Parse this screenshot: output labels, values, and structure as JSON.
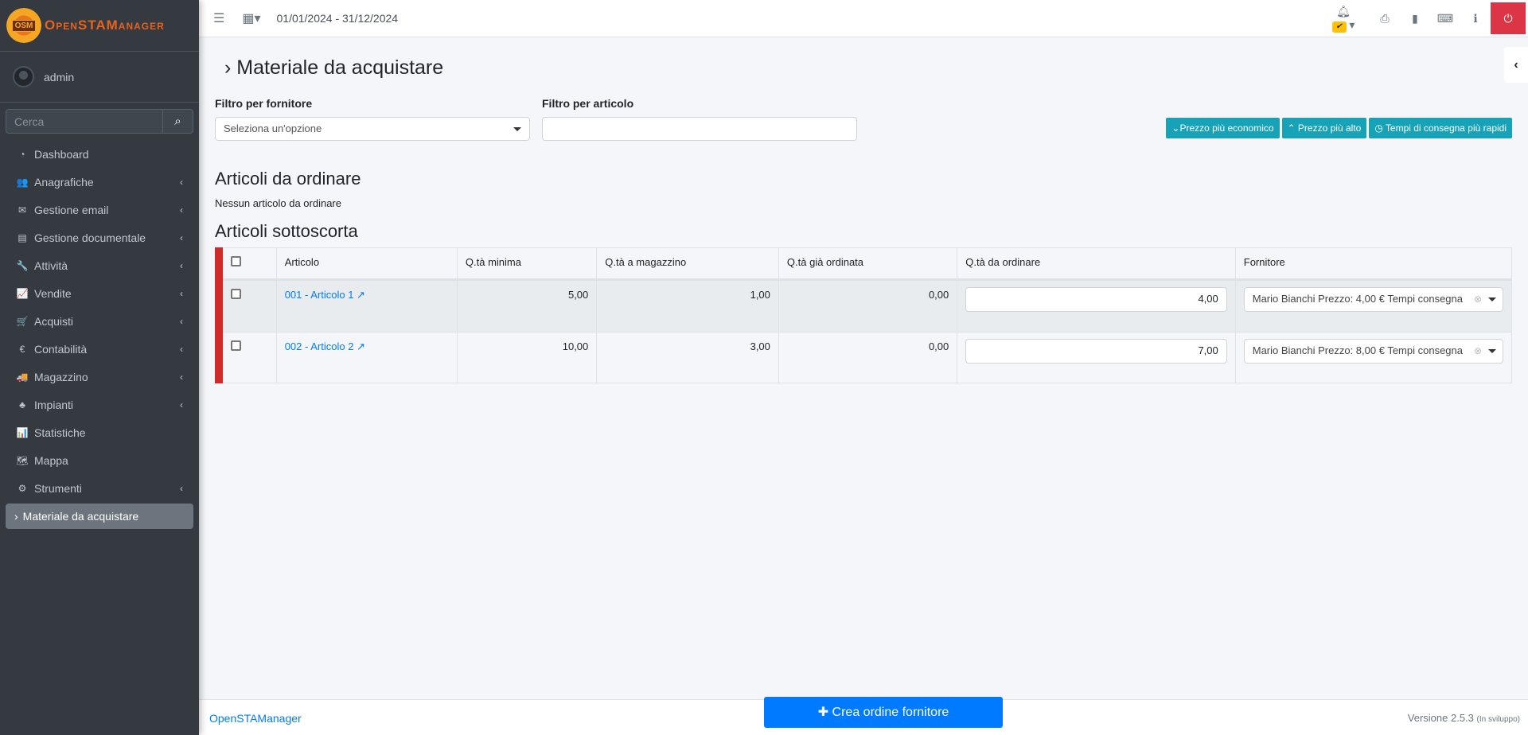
{
  "brand": {
    "name": "OpenSTAManager",
    "logo_text": "OSM"
  },
  "user": {
    "name": "admin"
  },
  "search": {
    "placeholder": "Cerca"
  },
  "sidebar": {
    "items": [
      {
        "label": "Dashboard",
        "icon": "dashboard-icon",
        "glyph": "◔",
        "sub": false
      },
      {
        "label": "Anagrafiche",
        "icon": "users-icon",
        "glyph": "👥",
        "sub": true
      },
      {
        "label": "Gestione email",
        "icon": "envelope-icon",
        "glyph": "✉",
        "sub": true
      },
      {
        "label": "Gestione documentale",
        "icon": "file-icon",
        "glyph": "▤",
        "sub": true
      },
      {
        "label": "Attività",
        "icon": "wrench-icon",
        "glyph": "🔧",
        "sub": true
      },
      {
        "label": "Vendite",
        "icon": "line-chart-icon",
        "glyph": "📈",
        "sub": true
      },
      {
        "label": "Acquisti",
        "icon": "cart-icon",
        "glyph": "🛒",
        "sub": true
      },
      {
        "label": "Contabilità",
        "icon": "euro-icon",
        "glyph": "€",
        "sub": true
      },
      {
        "label": "Magazzino",
        "icon": "truck-icon",
        "glyph": "🚚",
        "sub": true
      },
      {
        "label": "Impianti",
        "icon": "puzzle-icon",
        "glyph": "♣",
        "sub": true
      },
      {
        "label": "Statistiche",
        "icon": "bar-chart-icon",
        "glyph": "📊",
        "sub": false
      },
      {
        "label": "Mappa",
        "icon": "map-icon",
        "glyph": "🗺",
        "sub": false
      },
      {
        "label": "Strumenti",
        "icon": "cog-icon",
        "glyph": "⚙",
        "sub": true
      }
    ],
    "active": "Materiale da acquistare"
  },
  "topbar": {
    "daterange": "01/01/2024 - 31/12/2024"
  },
  "page": {
    "title": "Materiale da acquistare",
    "filter_supplier_label": "Filtro per fornitore",
    "filter_supplier_placeholder": "Seleziona un'opzione",
    "filter_article_label": "Filtro per articolo",
    "buttons": [
      "Prezzo più economico",
      "Prezzo più alto",
      "Tempi di consegna più rapidi"
    ],
    "section_order": "Articoli da ordinare",
    "no_items": "Nessun articolo da ordinare",
    "section_under": "Articoli sottoscorta"
  },
  "table": {
    "headers": [
      "Articolo",
      "Q.tà minima",
      "Q.tà a magazzino",
      "Q.tà già ordinata",
      "Q.tà da ordinare",
      "Fornitore"
    ],
    "rows": [
      {
        "articolo": "001 - Articolo 1",
        "min": "5,00",
        "mag": "1,00",
        "ord": "0,00",
        "da_ordinare": "4,00",
        "fornitore": "Mario Bianchi Prezzo: 4,00 €  Tempi consegna"
      },
      {
        "articolo": "002 - Articolo 2",
        "min": "10,00",
        "mag": "3,00",
        "ord": "0,00",
        "da_ordinare": "7,00",
        "fornitore": "Mario Bianchi Prezzo: 8,00 €  Tempi consegna"
      }
    ]
  },
  "footer": {
    "brand": "OpenSTAManager",
    "create": "Crea ordine fornitore",
    "version": "Versione 2.5.3",
    "version_note": "(In sviluppo)"
  },
  "colors": {
    "accent": "#007bff",
    "info": "#17a2b8",
    "danger": "#dc3545",
    "sidebar": "#343a40"
  }
}
